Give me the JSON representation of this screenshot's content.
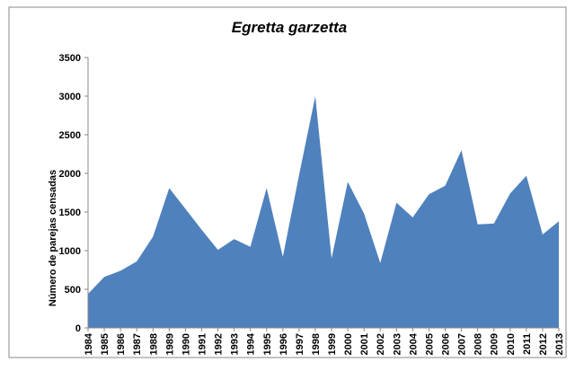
{
  "chart_data": {
    "type": "area",
    "title": "Egretta garzetta",
    "y_label": "Número de parejas censadas",
    "categories": [
      "1984",
      "1985",
      "1986",
      "1987",
      "1988",
      "1989",
      "1990",
      "1991",
      "1992",
      "1993",
      "1994",
      "1995",
      "1996",
      "1997",
      "1998",
      "1999",
      "2000",
      "2001",
      "2002",
      "2003",
      "2004",
      "2005",
      "2006",
      "2007",
      "2008",
      "2009",
      "2010",
      "2011",
      "2012",
      "2013"
    ],
    "values": [
      440,
      660,
      740,
      860,
      1180,
      1810,
      1540,
      1270,
      1010,
      1150,
      1050,
      1810,
      920,
      1980,
      3000,
      900,
      1890,
      1480,
      840,
      1620,
      1430,
      1730,
      1840,
      2300,
      1340,
      1350,
      1740,
      1970,
      1210,
      1380
    ],
    "color": "#4f81bd",
    "ylim": [
      0,
      3500
    ],
    "yticks": [
      0,
      500,
      1000,
      1500,
      2000,
      2500,
      3000,
      3500
    ],
    "grid": false
  }
}
